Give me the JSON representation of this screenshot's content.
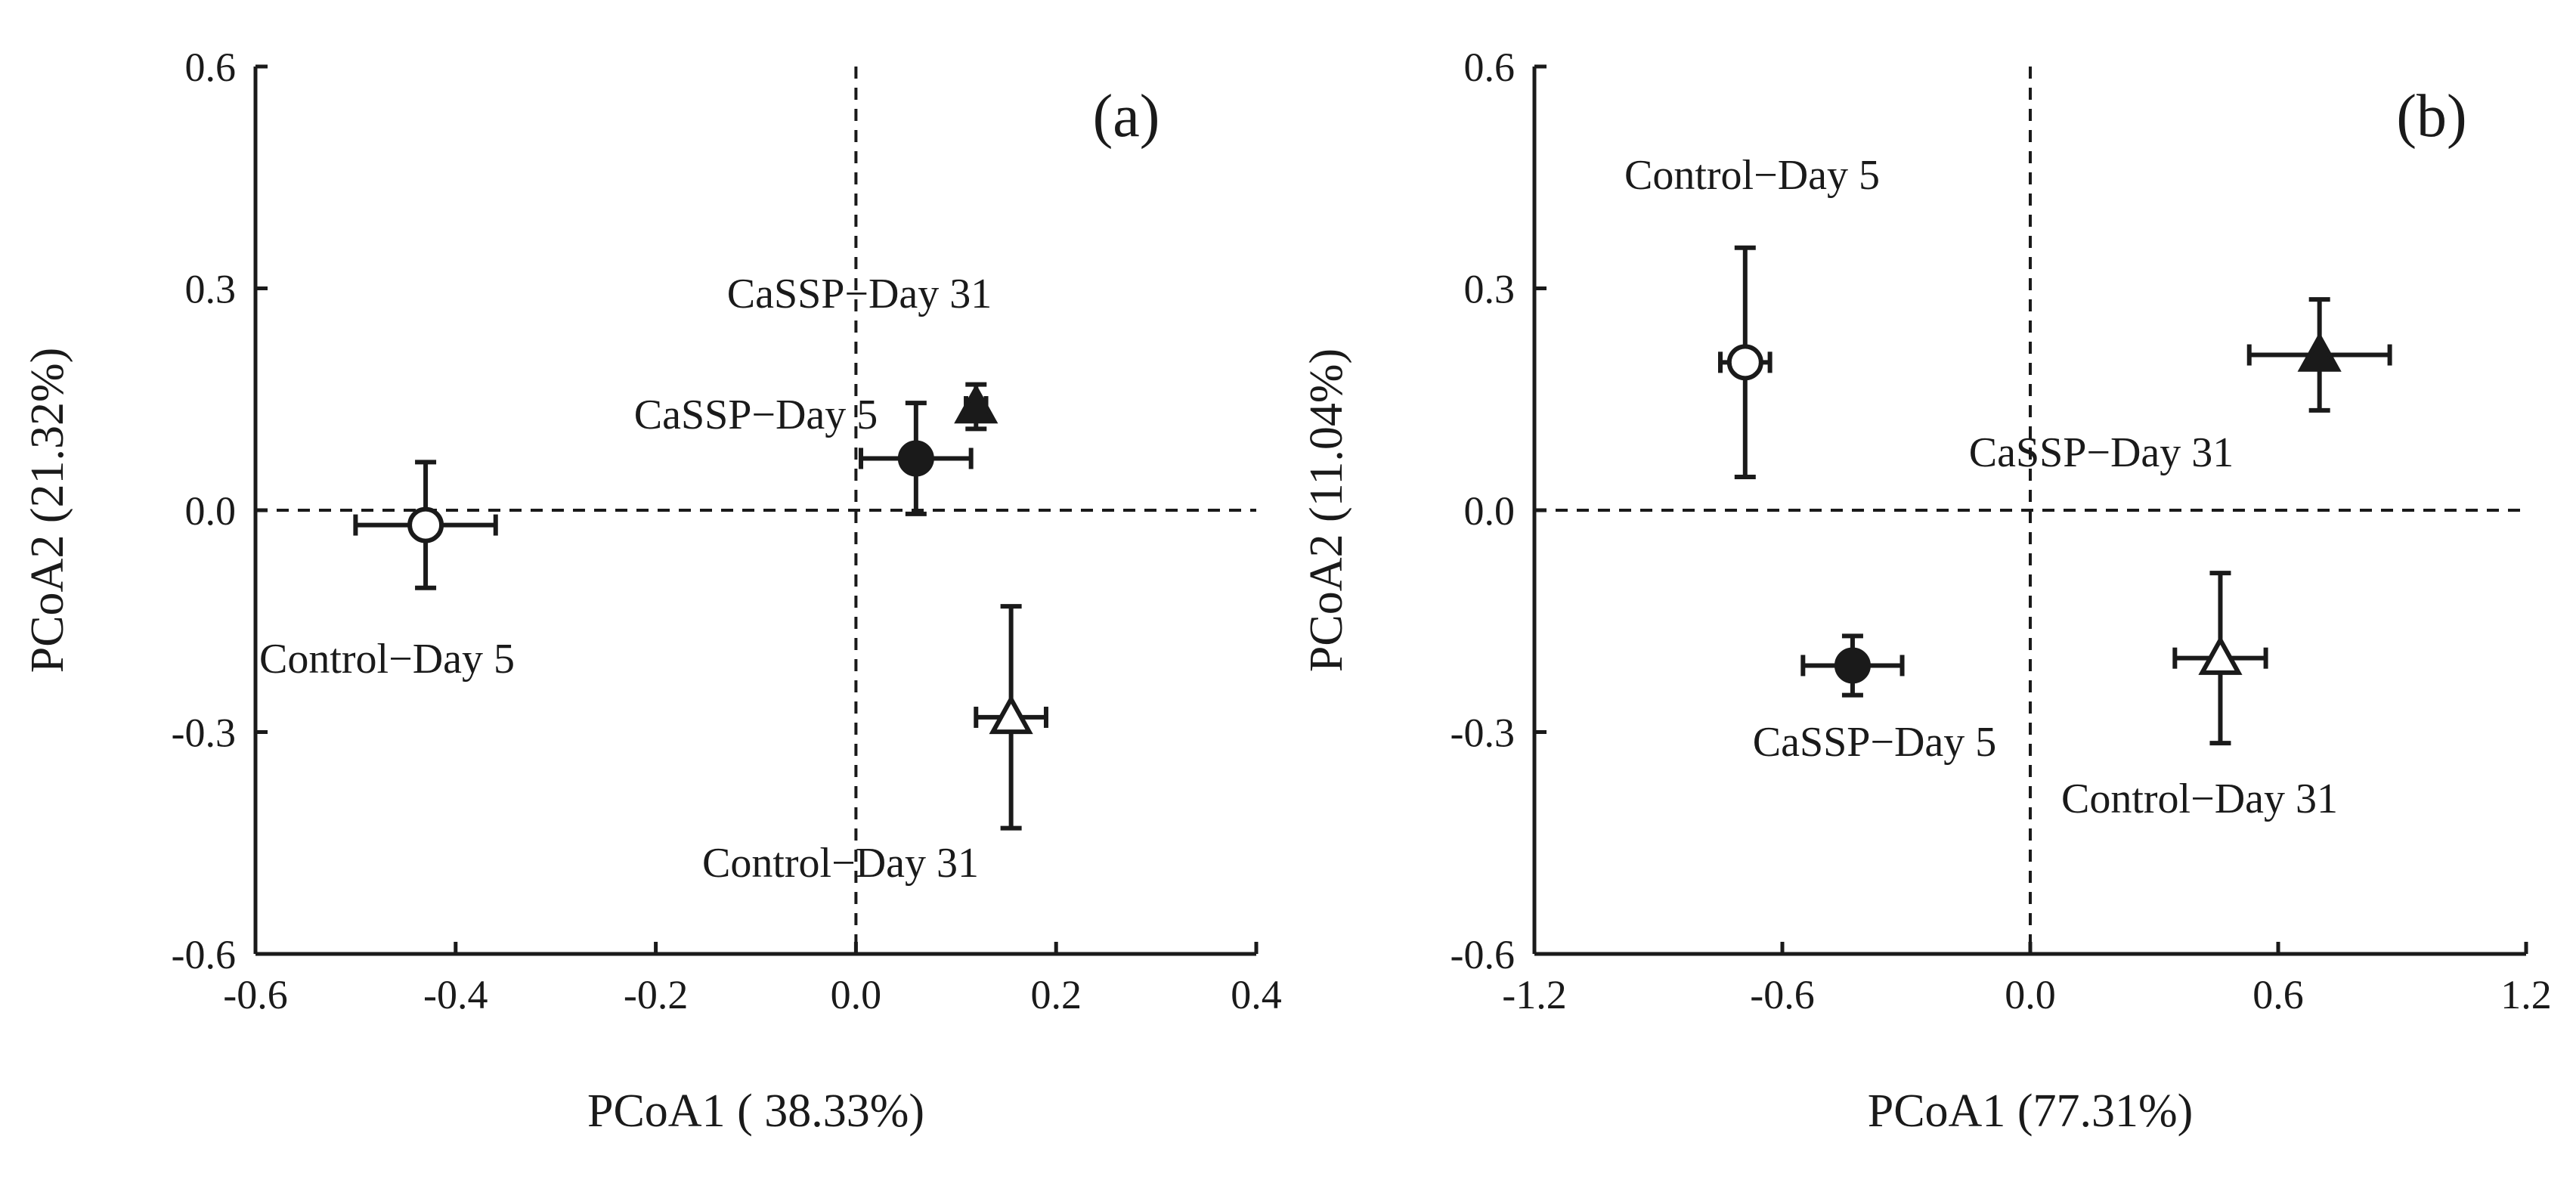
{
  "chart_data": [
    {
      "type": "scatter",
      "panel_label": "(a)",
      "xlabel": "PCoA1 ( 38.33%)",
      "ylabel": "PCoA2 (21.32%)",
      "xlim": [
        -0.6,
        0.4
      ],
      "ylim": [
        -0.6,
        0.6
      ],
      "xticks": [
        -0.6,
        -0.4,
        -0.2,
        0.0,
        0.2,
        0.4
      ],
      "yticks": [
        -0.6,
        -0.3,
        0.0,
        0.3,
        0.6
      ],
      "xtick_labels": [
        "-0.6",
        "-0.4",
        "-0.2",
        "0.0",
        "0.2",
        "0.4"
      ],
      "ytick_labels": [
        "-0.6",
        "-0.3",
        "0.0",
        "0.3",
        "0.6"
      ],
      "reference_lines": {
        "x": 0.0,
        "y": 0.0,
        "style": "dashed"
      },
      "points": [
        {
          "name": "Control−Day 5",
          "marker": "circle-open",
          "x": -0.43,
          "y": -0.02,
          "xerr": 0.07,
          "yerr": 0.085
        },
        {
          "name": "CaSSP−Day 5",
          "marker": "circle-filled",
          "x": 0.06,
          "y": 0.07,
          "xerr": 0.055,
          "yerr": 0.075
        },
        {
          "name": "CaSSP−Day 31",
          "marker": "triangle-filled",
          "x": 0.12,
          "y": 0.14,
          "xerr": 0.01,
          "yerr": 0.03
        },
        {
          "name": "Control−Day 31",
          "marker": "triangle-open",
          "x": 0.155,
          "y": -0.28,
          "xerr": 0.035,
          "yerr": 0.15
        }
      ]
    },
    {
      "type": "scatter",
      "panel_label": "(b)",
      "xlabel": "PCoA1 (77.31%)",
      "ylabel": "PCoA2 (11.04%)",
      "xlim": [
        -1.2,
        1.2
      ],
      "ylim": [
        -0.6,
        0.6
      ],
      "xticks": [
        -1.2,
        -0.6,
        0.0,
        0.6,
        1.2
      ],
      "yticks": [
        -0.6,
        -0.3,
        0.0,
        0.3,
        0.6
      ],
      "xtick_labels": [
        "-1.2",
        "-0.6",
        "0.0",
        "0.6",
        "1.2"
      ],
      "ytick_labels": [
        "-0.6",
        "-0.3",
        "0.0",
        "0.3",
        "0.6"
      ],
      "reference_lines": {
        "x": 0.0,
        "y": 0.0,
        "style": "dashed"
      },
      "points": [
        {
          "name": "Control−Day 5",
          "marker": "circle-open",
          "x": -0.69,
          "y": 0.2,
          "xerr": 0.06,
          "yerr": 0.155
        },
        {
          "name": "CaSSP−Day 31",
          "marker": "triangle-filled",
          "x": 0.7,
          "y": 0.21,
          "xerr": 0.17,
          "yerr": 0.075
        },
        {
          "name": "CaSSP−Day 5",
          "marker": "circle-filled",
          "x": -0.43,
          "y": -0.21,
          "xerr": 0.12,
          "yerr": 0.04
        },
        {
          "name": "Control−Day 31",
          "marker": "triangle-open",
          "x": 0.46,
          "y": -0.2,
          "xerr": 0.11,
          "yerr": 0.115
        }
      ]
    }
  ]
}
